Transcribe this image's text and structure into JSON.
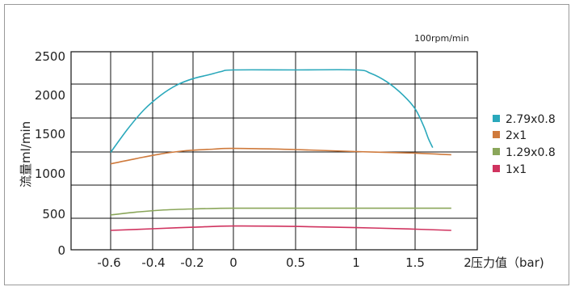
{
  "chart_data": {
    "type": "line",
    "title": "",
    "annotation": "100rpm/min",
    "ylabel": "流量ml/min",
    "xlabel": "压力值（bar)",
    "ylim": [
      0,
      2500
    ],
    "y_tick_labels": [
      "0",
      "500",
      "1000",
      "1500",
      "2000",
      "2500"
    ],
    "x_tick_labels": [
      "-0.6",
      "-0.4",
      "-0.2",
      "0",
      "0.5",
      "1",
      "1.5",
      "2"
    ],
    "grid": true,
    "legend_position": "right",
    "series": [
      {
        "name": "2.79x0.8",
        "color": "#2aa8bb",
        "points": [
          [
            -0.6,
            1230
          ],
          [
            -0.52,
            1520
          ],
          [
            -0.44,
            1770
          ],
          [
            -0.36,
            1950
          ],
          [
            -0.28,
            2080
          ],
          [
            -0.2,
            2160
          ],
          [
            -0.12,
            2210
          ],
          [
            -0.06,
            2250
          ],
          [
            0,
            2270
          ],
          [
            0.5,
            2270
          ],
          [
            1,
            2270
          ],
          [
            1.12,
            2230
          ],
          [
            1.26,
            2120
          ],
          [
            1.4,
            1950
          ],
          [
            1.5,
            1780
          ],
          [
            1.58,
            1570
          ],
          [
            1.63,
            1400
          ],
          [
            1.67,
            1290
          ]
        ]
      },
      {
        "name": "2x1",
        "color": "#cf7a3c",
        "points": [
          [
            -0.6,
            1085
          ],
          [
            -0.48,
            1150
          ],
          [
            -0.36,
            1210
          ],
          [
            -0.24,
            1250
          ],
          [
            -0.1,
            1270
          ],
          [
            0,
            1280
          ],
          [
            0.5,
            1265
          ],
          [
            1,
            1240
          ],
          [
            1.5,
            1220
          ],
          [
            1.75,
            1205
          ],
          [
            1.85,
            1200
          ]
        ]
      },
      {
        "name": "1.29x0.8",
        "color": "#8aa65a",
        "points": [
          [
            -0.6,
            440
          ],
          [
            -0.48,
            475
          ],
          [
            -0.36,
            500
          ],
          [
            -0.2,
            515
          ],
          [
            0,
            525
          ],
          [
            0.5,
            525
          ],
          [
            1,
            525
          ],
          [
            1.5,
            525
          ],
          [
            1.85,
            525
          ]
        ]
      },
      {
        "name": "1x1",
        "color": "#d0335f",
        "points": [
          [
            -0.6,
            245
          ],
          [
            -0.4,
            265
          ],
          [
            -0.2,
            285
          ],
          [
            0,
            300
          ],
          [
            0.5,
            295
          ],
          [
            1,
            280
          ],
          [
            1.5,
            260
          ],
          [
            1.85,
            245
          ]
        ]
      }
    ]
  }
}
